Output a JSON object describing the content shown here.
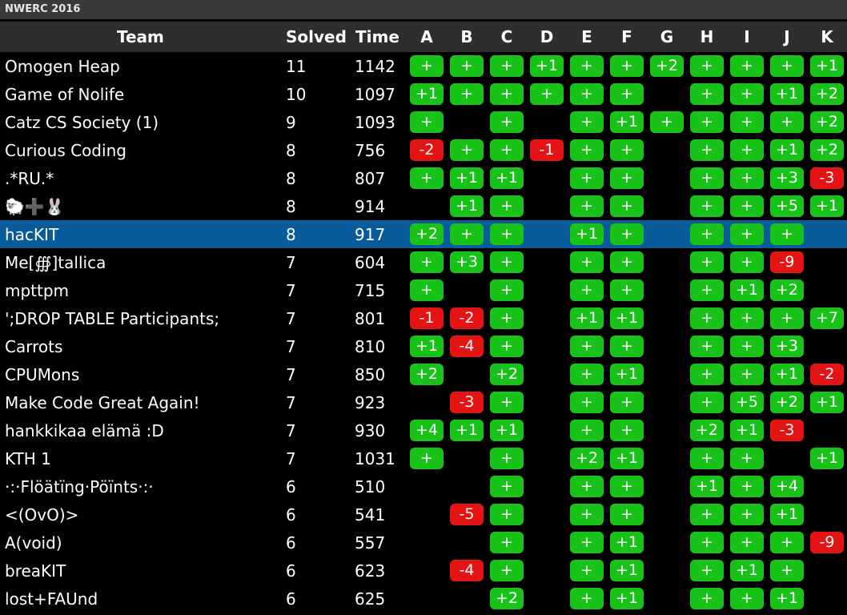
{
  "title": "NWERC 2016",
  "header": {
    "team": "Team",
    "solved": "Solved",
    "time": "Time",
    "problems": [
      "A",
      "B",
      "C",
      "D",
      "E",
      "F",
      "G",
      "H",
      "I",
      "J",
      "K"
    ]
  },
  "selected_team": "hacKIT",
  "rows": [
    {
      "team": "Omogen Heap",
      "solved": "11",
      "time": "1142",
      "results": [
        "+",
        "+",
        "+",
        "+1",
        "+",
        "+",
        "+2",
        "+",
        "+",
        "+",
        "+1"
      ]
    },
    {
      "team": "Game of Nolife",
      "solved": "10",
      "time": "1097",
      "results": [
        "+1",
        "+",
        "+",
        "+",
        "+",
        "+",
        "",
        "+",
        "+",
        "+1",
        "+2"
      ]
    },
    {
      "team": "Catz CS Society (1)",
      "solved": "9",
      "time": "1093",
      "results": [
        "+",
        "",
        "+",
        "",
        "+",
        "+1",
        "+",
        "+",
        "+",
        "+",
        "+2"
      ]
    },
    {
      "team": "Curious Coding",
      "solved": "8",
      "time": "756",
      "results": [
        "-2",
        "+",
        "+",
        "-1",
        "+",
        "+",
        "",
        "+",
        "+",
        "+1",
        "+2"
      ]
    },
    {
      "team": ".*RU.*",
      "solved": "8",
      "time": "807",
      "results": [
        "+",
        "+1",
        "+1",
        "",
        "+",
        "+",
        "",
        "+",
        "+",
        "+3",
        "-3"
      ]
    },
    {
      "team": "🐑➕🐰",
      "solved": "8",
      "time": "914",
      "results": [
        "",
        "+1",
        "+",
        "",
        "+",
        "+",
        "",
        "+",
        "+",
        "+5",
        "+1"
      ]
    },
    {
      "team": "hacKIT",
      "solved": "8",
      "time": "917",
      "results": [
        "+2",
        "+",
        "+",
        "",
        "+1",
        "+",
        "",
        "+",
        "+",
        "+",
        ""
      ]
    },
    {
      "team": "Me[∰]tallica",
      "solved": "7",
      "time": "604",
      "results": [
        "+",
        "+3",
        "+",
        "",
        "+",
        "+",
        "",
        "+",
        "+",
        "-9",
        ""
      ]
    },
    {
      "team": "mpttpm",
      "solved": "7",
      "time": "715",
      "results": [
        "+",
        "",
        "+",
        "",
        "+",
        "+",
        "",
        "+",
        "+1",
        "+2",
        ""
      ]
    },
    {
      "team": "';DROP TABLE Participants;",
      "solved": "7",
      "time": "801",
      "results": [
        "-1",
        "-2",
        "+",
        "",
        "+1",
        "+1",
        "",
        "+",
        "+",
        "+",
        "+7"
      ]
    },
    {
      "team": "Carrots",
      "solved": "7",
      "time": "810",
      "results": [
        "+1",
        "-4",
        "+",
        "",
        "+",
        "+",
        "",
        "+",
        "+",
        "+3",
        ""
      ]
    },
    {
      "team": "CPUMons",
      "solved": "7",
      "time": "850",
      "results": [
        "+2",
        "",
        "+2",
        "",
        "+",
        "+1",
        "",
        "+",
        "+",
        "+1",
        "-2"
      ]
    },
    {
      "team": "Make Code Great Again!",
      "solved": "7",
      "time": "923",
      "results": [
        "",
        "-3",
        "+",
        "",
        "+",
        "+",
        "",
        "+",
        "+5",
        "+2",
        "+1"
      ]
    },
    {
      "team": "hankkikaa elämä :D",
      "solved": "7",
      "time": "930",
      "results": [
        "+4",
        "+1",
        "+1",
        "",
        "+",
        "+",
        "",
        "+2",
        "+1",
        "-3",
        ""
      ]
    },
    {
      "team": "KTH 1",
      "solved": "7",
      "time": "1031",
      "results": [
        "+",
        "",
        "+",
        "",
        "+2",
        "+1",
        "",
        "+",
        "+",
        "",
        "+1"
      ]
    },
    {
      "team": "·:·Flöätïng·Pöïnts·:·",
      "solved": "6",
      "time": "510",
      "results": [
        "",
        "",
        "+",
        "",
        "+",
        "+",
        "",
        "+1",
        "+",
        "+4",
        ""
      ]
    },
    {
      "team": "<(OvO)>",
      "solved": "6",
      "time": "541",
      "results": [
        "",
        "-5",
        "+",
        "",
        "+",
        "+",
        "",
        "+",
        "+",
        "+1",
        ""
      ]
    },
    {
      "team": "A(void)",
      "solved": "6",
      "time": "557",
      "results": [
        "",
        "",
        "+",
        "",
        "+",
        "+1",
        "",
        "+",
        "+",
        "+",
        "-9"
      ]
    },
    {
      "team": "breaKIT",
      "solved": "6",
      "time": "623",
      "results": [
        "",
        "-4",
        "+",
        "",
        "+",
        "+1",
        "",
        "+",
        "+1",
        "+",
        ""
      ]
    },
    {
      "team": "lost+FAUnd",
      "solved": "6",
      "time": "625",
      "results": [
        "",
        "",
        "+2",
        "",
        "+",
        "+1",
        "",
        "+",
        "+",
        "+1",
        ""
      ]
    }
  ],
  "colors": {
    "solved": "#19c219",
    "failed": "#e41414",
    "selected_row": "#0a5b9a",
    "header_bg": "#2e2e2e"
  }
}
